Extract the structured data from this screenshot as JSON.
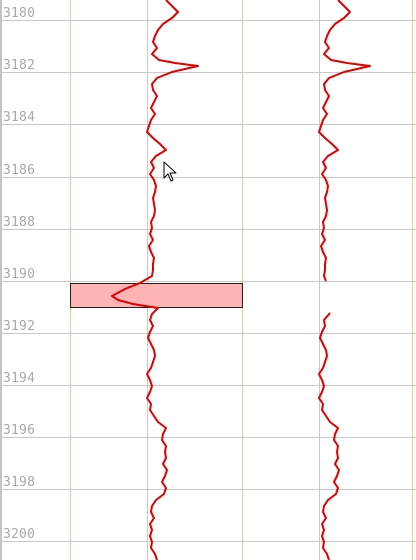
{
  "depth_track": {
    "labels": [
      "3180",
      "3182",
      "3184",
      "3186",
      "3188",
      "3190",
      "3192",
      "3194",
      "3196",
      "3198",
      "3200"
    ]
  },
  "colors": {
    "curve": "#e00000",
    "gridline": "#c8c8c8",
    "track_border": "#f0c890",
    "highlight_fill": "#ffb4b4",
    "highlight_border": "#202020",
    "depth_text": "#a8a8a8"
  },
  "icons": {
    "cursor": "mouse-pointer-icon"
  }
}
